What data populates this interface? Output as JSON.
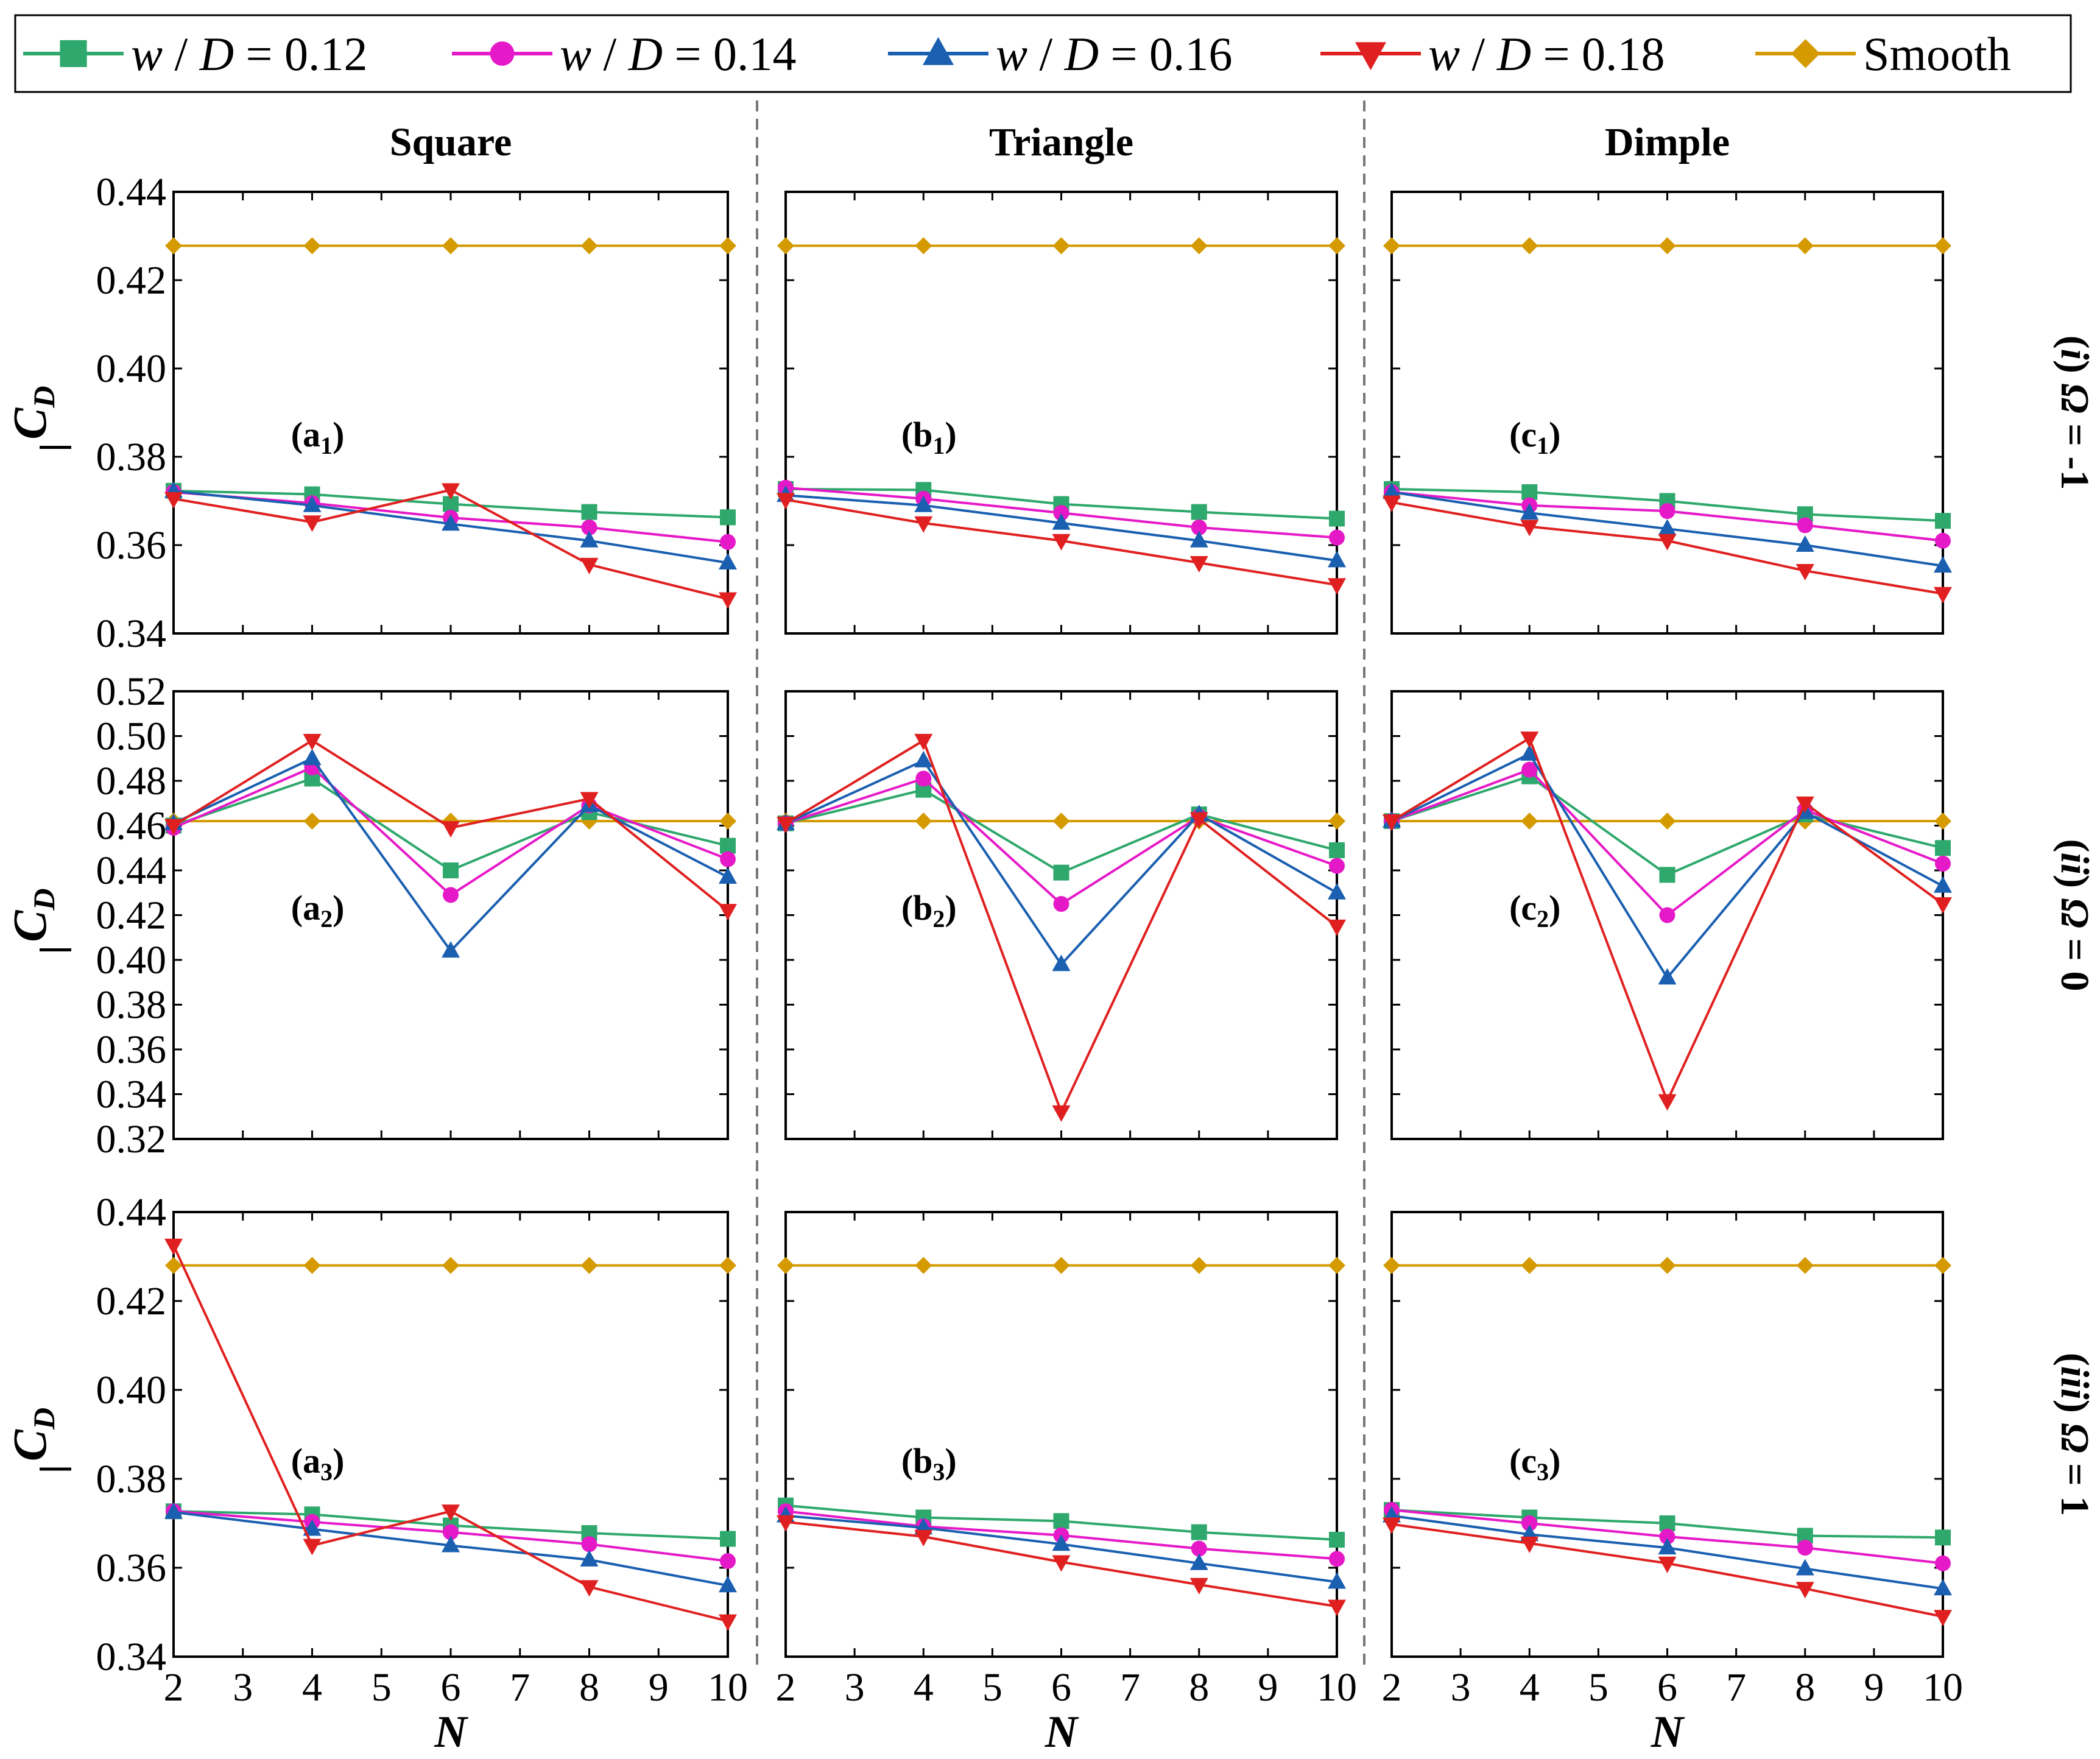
{
  "chart_data": {
    "type": "line",
    "legend": {
      "placement": "top",
      "entries": [
        {
          "series": "s012",
          "prefix": "w",
          "suffix": " / D = 0.12"
        },
        {
          "series": "s014",
          "prefix": "w",
          "suffix": " / D = 0.14"
        },
        {
          "series": "s016",
          "prefix": "w",
          "suffix": " / D = 0.16"
        },
        {
          "series": "s018",
          "prefix": "w",
          "suffix": " / D = 0.18"
        },
        {
          "series": "smooth",
          "prefix": "",
          "suffix": "Smooth"
        }
      ]
    },
    "series_styles": {
      "s012": {
        "color": "#2ea86c",
        "marker": "square"
      },
      "s014": {
        "color": "#e619c8",
        "marker": "circle"
      },
      "s016": {
        "color": "#1a5fb0",
        "marker": "triangle-up"
      },
      "s018": {
        "color": "#e02020",
        "marker": "triangle-down"
      },
      "smooth": {
        "color": "#d49a00",
        "marker": "diamond"
      }
    },
    "columns": [
      "Square",
      "Triangle",
      "Dimple"
    ],
    "rows": [
      {
        "label_prefix": "(",
        "label_italic": "i",
        "label_mid": ") ",
        "label_omega": "Ω",
        "label_value": " = -1",
        "ylim": [
          0.34,
          0.44
        ],
        "yticks": [
          "0.34",
          "0.36",
          "0.38",
          "0.40",
          "0.42",
          "0.44"
        ]
      },
      {
        "label_prefix": "(",
        "label_italic": "ii",
        "label_mid": ") ",
        "label_omega": "Ω",
        "label_value": " = 0",
        "ylim": [
          0.32,
          0.52
        ],
        "yticks": [
          "0.32",
          "0.34",
          "0.36",
          "0.38",
          "0.40",
          "0.42",
          "0.44",
          "0.46",
          "0.48",
          "0.50",
          "0.52"
        ]
      },
      {
        "label_prefix": "(",
        "label_italic": "iii",
        "label_mid": ") ",
        "label_omega": "Ω",
        "label_value": " = 1",
        "ylim": [
          0.34,
          0.44
        ],
        "yticks": [
          "0.34",
          "0.36",
          "0.38",
          "0.40",
          "0.42",
          "0.44"
        ]
      }
    ],
    "xlabel": "N",
    "ylabel_main": "C",
    "ylabel_sub": "D",
    "xlim": [
      2,
      10
    ],
    "xticks": [
      "2",
      "3",
      "4",
      "5",
      "6",
      "7",
      "8",
      "9",
      "10"
    ],
    "x": [
      2,
      4,
      6,
      8,
      10
    ],
    "panels": [
      {
        "row": 0,
        "col": 0,
        "letter": "a",
        "index": "1",
        "series": {
          "s012": [
            0.3723,
            0.3715,
            0.3693,
            0.3675,
            0.3663
          ],
          "s014": [
            0.372,
            0.3695,
            0.3662,
            0.364,
            0.3607
          ],
          "s016": [
            0.3722,
            0.369,
            0.3648,
            0.361,
            0.356
          ],
          "s018": [
            0.3705,
            0.3652,
            0.3725,
            0.3556,
            0.3478
          ],
          "smooth": [
            0.4278,
            0.4278,
            0.4278,
            0.4278,
            0.4278
          ]
        }
      },
      {
        "row": 0,
        "col": 1,
        "letter": "b",
        "index": "1",
        "series": {
          "s012": [
            0.3727,
            0.3725,
            0.3693,
            0.3675,
            0.366
          ],
          "s014": [
            0.373,
            0.3705,
            0.3673,
            0.364,
            0.3617
          ],
          "s016": [
            0.3713,
            0.369,
            0.365,
            0.361,
            0.3565
          ],
          "s018": [
            0.3703,
            0.365,
            0.361,
            0.356,
            0.351
          ],
          "smooth": [
            0.4278,
            0.4278,
            0.4278,
            0.4278,
            0.4278
          ]
        }
      },
      {
        "row": 0,
        "col": 2,
        "letter": "c",
        "index": "1",
        "series": {
          "s012": [
            0.3727,
            0.372,
            0.37,
            0.367,
            0.3655
          ],
          "s014": [
            0.372,
            0.369,
            0.3677,
            0.3645,
            0.361
          ],
          "s016": [
            0.372,
            0.3673,
            0.3637,
            0.36,
            0.3553
          ],
          "s018": [
            0.3697,
            0.3642,
            0.361,
            0.3542,
            0.349
          ],
          "smooth": [
            0.4278,
            0.4278,
            0.4278,
            0.4278,
            0.4278
          ]
        }
      },
      {
        "row": 1,
        "col": 0,
        "letter": "a",
        "index": "2",
        "series": {
          "s012": [
            0.46,
            0.481,
            0.44,
            0.466,
            0.451
          ],
          "s014": [
            0.459,
            0.486,
            0.429,
            0.469,
            0.445
          ],
          "s016": [
            0.461,
            0.49,
            0.404,
            0.469,
            0.437
          ],
          "s018": [
            0.46,
            0.498,
            0.459,
            0.472,
            0.422
          ],
          "smooth": [
            0.462,
            0.462,
            0.462,
            0.462,
            0.462
          ]
        }
      },
      {
        "row": 1,
        "col": 1,
        "letter": "b",
        "index": "2",
        "series": {
          "s012": [
            0.461,
            0.476,
            0.439,
            0.465,
            0.449
          ],
          "s014": [
            0.461,
            0.481,
            0.425,
            0.464,
            0.442
          ],
          "s016": [
            0.461,
            0.489,
            0.398,
            0.465,
            0.43
          ],
          "s018": [
            0.461,
            0.498,
            0.332,
            0.463,
            0.415
          ],
          "smooth": [
            0.462,
            0.462,
            0.462,
            0.462,
            0.462
          ]
        }
      },
      {
        "row": 1,
        "col": 2,
        "letter": "c",
        "index": "2",
        "series": {
          "s012": [
            0.462,
            0.482,
            0.438,
            0.465,
            0.45
          ],
          "s014": [
            0.462,
            0.485,
            0.42,
            0.467,
            0.443
          ],
          "s016": [
            0.462,
            0.492,
            0.392,
            0.466,
            0.433
          ],
          "s018": [
            0.462,
            0.499,
            0.337,
            0.47,
            0.425
          ],
          "smooth": [
            0.462,
            0.462,
            0.462,
            0.462,
            0.462
          ]
        }
      },
      {
        "row": 2,
        "col": 0,
        "letter": "a",
        "index": "3",
        "series": {
          "s012": [
            0.3727,
            0.372,
            0.3695,
            0.3678,
            0.3665
          ],
          "s014": [
            0.3727,
            0.3703,
            0.368,
            0.3653,
            0.3615
          ],
          "s016": [
            0.3725,
            0.3687,
            0.365,
            0.3618,
            0.356
          ],
          "s018": [
            0.4325,
            0.365,
            0.3727,
            0.3557,
            0.348
          ],
          "smooth": [
            0.428,
            0.428,
            0.428,
            0.428,
            0.428
          ]
        }
      },
      {
        "row": 2,
        "col": 1,
        "letter": "b",
        "index": "3",
        "series": {
          "s012": [
            0.374,
            0.3713,
            0.3705,
            0.368,
            0.3663
          ],
          "s014": [
            0.3727,
            0.3693,
            0.3673,
            0.3643,
            0.362
          ],
          "s016": [
            0.3717,
            0.369,
            0.3653,
            0.361,
            0.3568
          ],
          "s018": [
            0.3703,
            0.367,
            0.3613,
            0.3562,
            0.3513
          ],
          "smooth": [
            0.428,
            0.428,
            0.428,
            0.428,
            0.428
          ]
        }
      },
      {
        "row": 2,
        "col": 2,
        "letter": "c",
        "index": "3",
        "series": {
          "s012": [
            0.373,
            0.3713,
            0.37,
            0.3672,
            0.3668
          ],
          "s014": [
            0.373,
            0.37,
            0.367,
            0.3645,
            0.361
          ],
          "s016": [
            0.3717,
            0.3675,
            0.3645,
            0.3598,
            0.3553
          ],
          "s018": [
            0.3698,
            0.3655,
            0.361,
            0.3553,
            0.349
          ],
          "smooth": [
            0.428,
            0.428,
            0.428,
            0.428,
            0.428
          ]
        }
      }
    ]
  }
}
